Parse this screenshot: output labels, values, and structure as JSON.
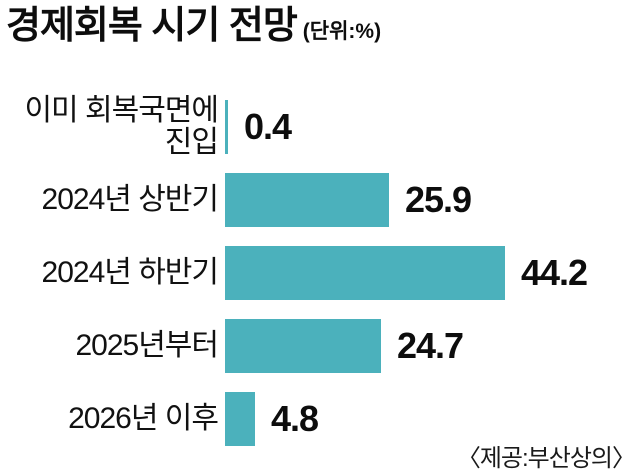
{
  "header": {
    "title": "경제회복 시기 전망",
    "unit_label": "(단위:%)"
  },
  "footer": {
    "source": "〈제공:부산상의〉"
  },
  "colors": {
    "bar": "#4bb1bc",
    "text": "#0d0d0d",
    "background": "#ffffff"
  },
  "chart_data": {
    "type": "bar",
    "orientation": "horizontal",
    "title": "경제회복 시기 전망",
    "unit": "%",
    "categories": [
      "이미 회복국면에\n진입",
      "2024년 상반기",
      "2024년 하반기",
      "2025년부터",
      "2026년 이후"
    ],
    "values": [
      0.4,
      25.9,
      44.2,
      24.7,
      4.8
    ],
    "value_labels": [
      "0.4",
      "25.9",
      "44.2",
      "24.7",
      "4.8"
    ],
    "xlim": [
      0,
      50
    ],
    "grid": false,
    "legend": false,
    "value_label_position": "right-of-bar",
    "source": "제공:부산상의"
  }
}
